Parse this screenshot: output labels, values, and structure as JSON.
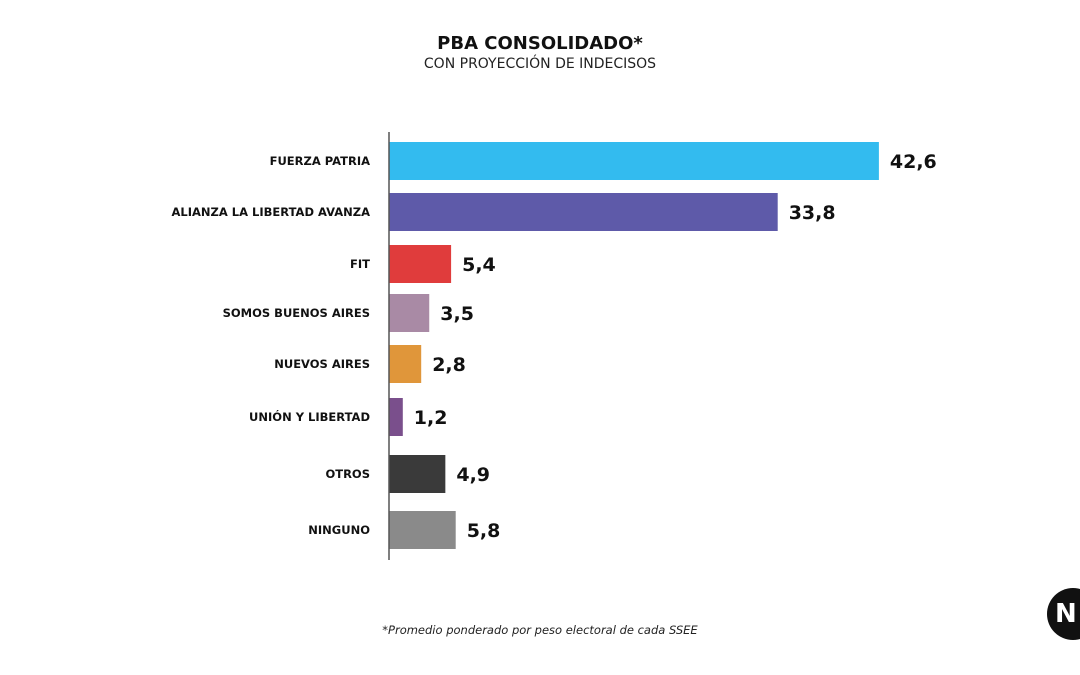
{
  "chart_data": {
    "type": "bar",
    "orientation": "horizontal",
    "title": "PBA CONSOLIDADO*",
    "subtitle": "CON PROYECCIÓN DE INDECISOS",
    "categories": [
      "FUERZA PATRIA",
      "ALIANZA LA LIBERTAD AVANZA",
      "FIT",
      "SOMOS BUENOS AIRES",
      "NUEVOS AIRES",
      "UNIÓN Y LIBERTAD",
      "OTROS",
      "NINGUNO"
    ],
    "values": [
      42.6,
      33.8,
      5.4,
      3.5,
      2.8,
      1.2,
      4.9,
      5.8
    ],
    "value_labels": [
      "42,6",
      "33,8",
      "5,4",
      "3,5",
      "2,8",
      "1,2",
      "4,9",
      "5,8"
    ],
    "colors": [
      "#33bbef",
      "#5e5aa9",
      "#e03c3c",
      "#a98aa5",
      "#e0963a",
      "#7a4f8c",
      "#3a3a3a",
      "#8a8a8a"
    ],
    "xlim": [
      0,
      43
    ],
    "grid": false,
    "footnote": "*Promedio ponderado por peso electoral de cada SSEE"
  },
  "logo": {
    "text": "N"
  }
}
